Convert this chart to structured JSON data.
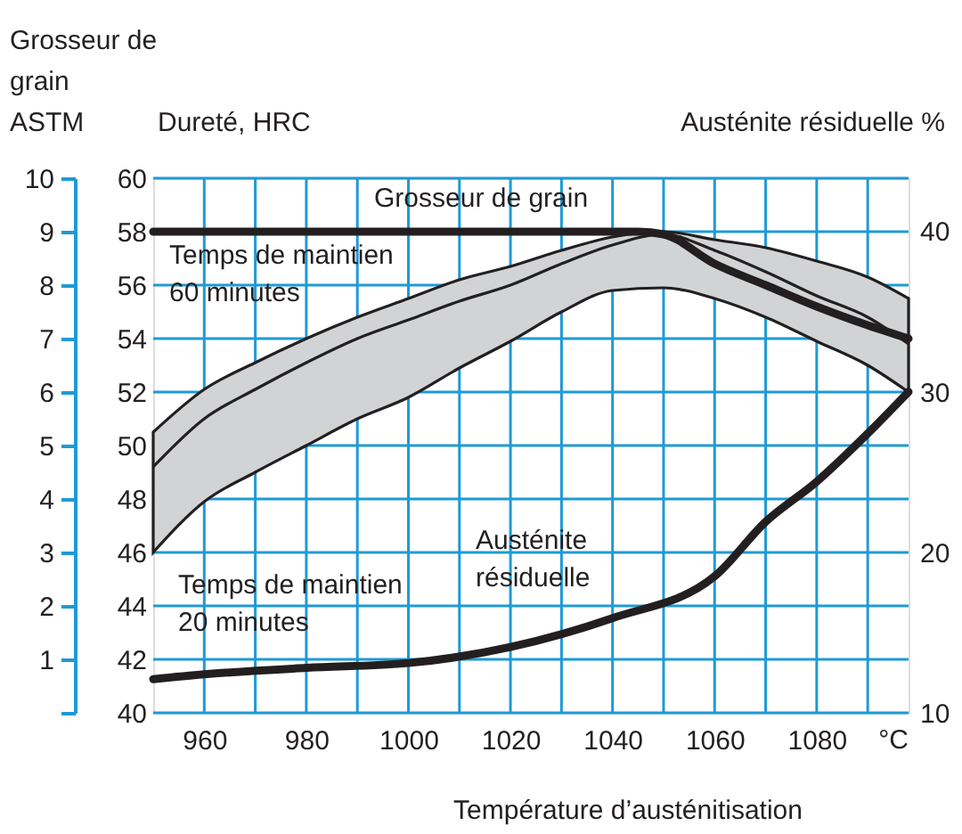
{
  "chart_data": {
    "type": "line",
    "xlabel": "Température d’austénitisation",
    "ylabel": "Dureté, HRC",
    "y2label": "Austénite résiduelle %",
    "y3label": "Grosseur de\ngrain\nASTM",
    "xlim": [
      950,
      1098
    ],
    "xticks": [
      960,
      {
        "value": 970,
        "label": null
      },
      980,
      {
        "value": 990,
        "label": null
      },
      1000,
      {
        "value": 1010,
        "label": null
      },
      1020,
      {
        "value": 1030,
        "label": null
      },
      1040,
      {
        "value": 1050,
        "label": null
      },
      1060,
      {
        "value": 1070,
        "label": null
      },
      1080,
      {
        "value": 1090,
        "label": null
      }
    ],
    "ylim": [
      40,
      60
    ],
    "yticks": [
      40,
      42,
      44,
      46,
      48,
      50,
      52,
      54,
      56,
      58,
      60
    ],
    "y2lim": [
      10,
      43.3
    ],
    "y2ticks": [
      10,
      20,
      30,
      40
    ],
    "y3lim": [
      0,
      10
    ],
    "y3ticks": [
      {
        "value": 0,
        "label": null
      },
      1,
      2,
      3,
      4,
      5,
      6,
      7,
      8,
      9,
      10
    ],
    "grid": true,
    "line_style": "solid",
    "series": [
      {
        "axis": "y",
        "color": "#231f20",
        "x": [
          950,
          960,
          970,
          980,
          990,
          1000,
          1010,
          1020,
          1030,
          1040,
          1050,
          1060,
          1070,
          1080,
          1090,
          1098
        ],
        "values": [
          49.2,
          51.0,
          52.1,
          53.1,
          54.0,
          54.7,
          55.4,
          56.0,
          56.8,
          57.5,
          57.9,
          57.3,
          56.5,
          55.6,
          54.8,
          53.8
        ],
        "upper": [
          50.5,
          52.1,
          53.1,
          54.0,
          54.8,
          55.5,
          56.2,
          56.7,
          57.3,
          57.8,
          58.0,
          57.7,
          57.4,
          56.9,
          56.3,
          55.5
        ],
        "lower": [
          46.0,
          47.9,
          49.0,
          50.0,
          51.0,
          51.8,
          52.9,
          53.9,
          55.0,
          55.8,
          55.9,
          55.5,
          54.8,
          53.9,
          53.0,
          52.0
        ]
      },
      {
        "axis": "y3",
        "color": "#231f20",
        "x": [
          950,
          1045,
          1050,
          1060,
          1070,
          1080,
          1090,
          1098
        ],
        "values": [
          9,
          9,
          8.95,
          8.4,
          8.0,
          7.6,
          7.25,
          7.0
        ]
      },
      {
        "axis": "y2",
        "color": "#231f20",
        "x": [
          950,
          960,
          980,
          1000,
          1020,
          1040,
          1060,
          1070,
          1080,
          1090,
          1098
        ],
        "values": [
          12.1,
          12.4,
          12.8,
          13.1,
          14.1,
          15.9,
          18.5,
          21.9,
          24.4,
          27.4,
          30.0
        ]
      }
    ],
    "annotations": [
      "Grosseur de grain",
      "Temps de maintien\n60 minutes",
      "Temps de maintien\n20 minutes",
      "Austénite\nrésiduelle",
      "°C"
    ]
  }
}
